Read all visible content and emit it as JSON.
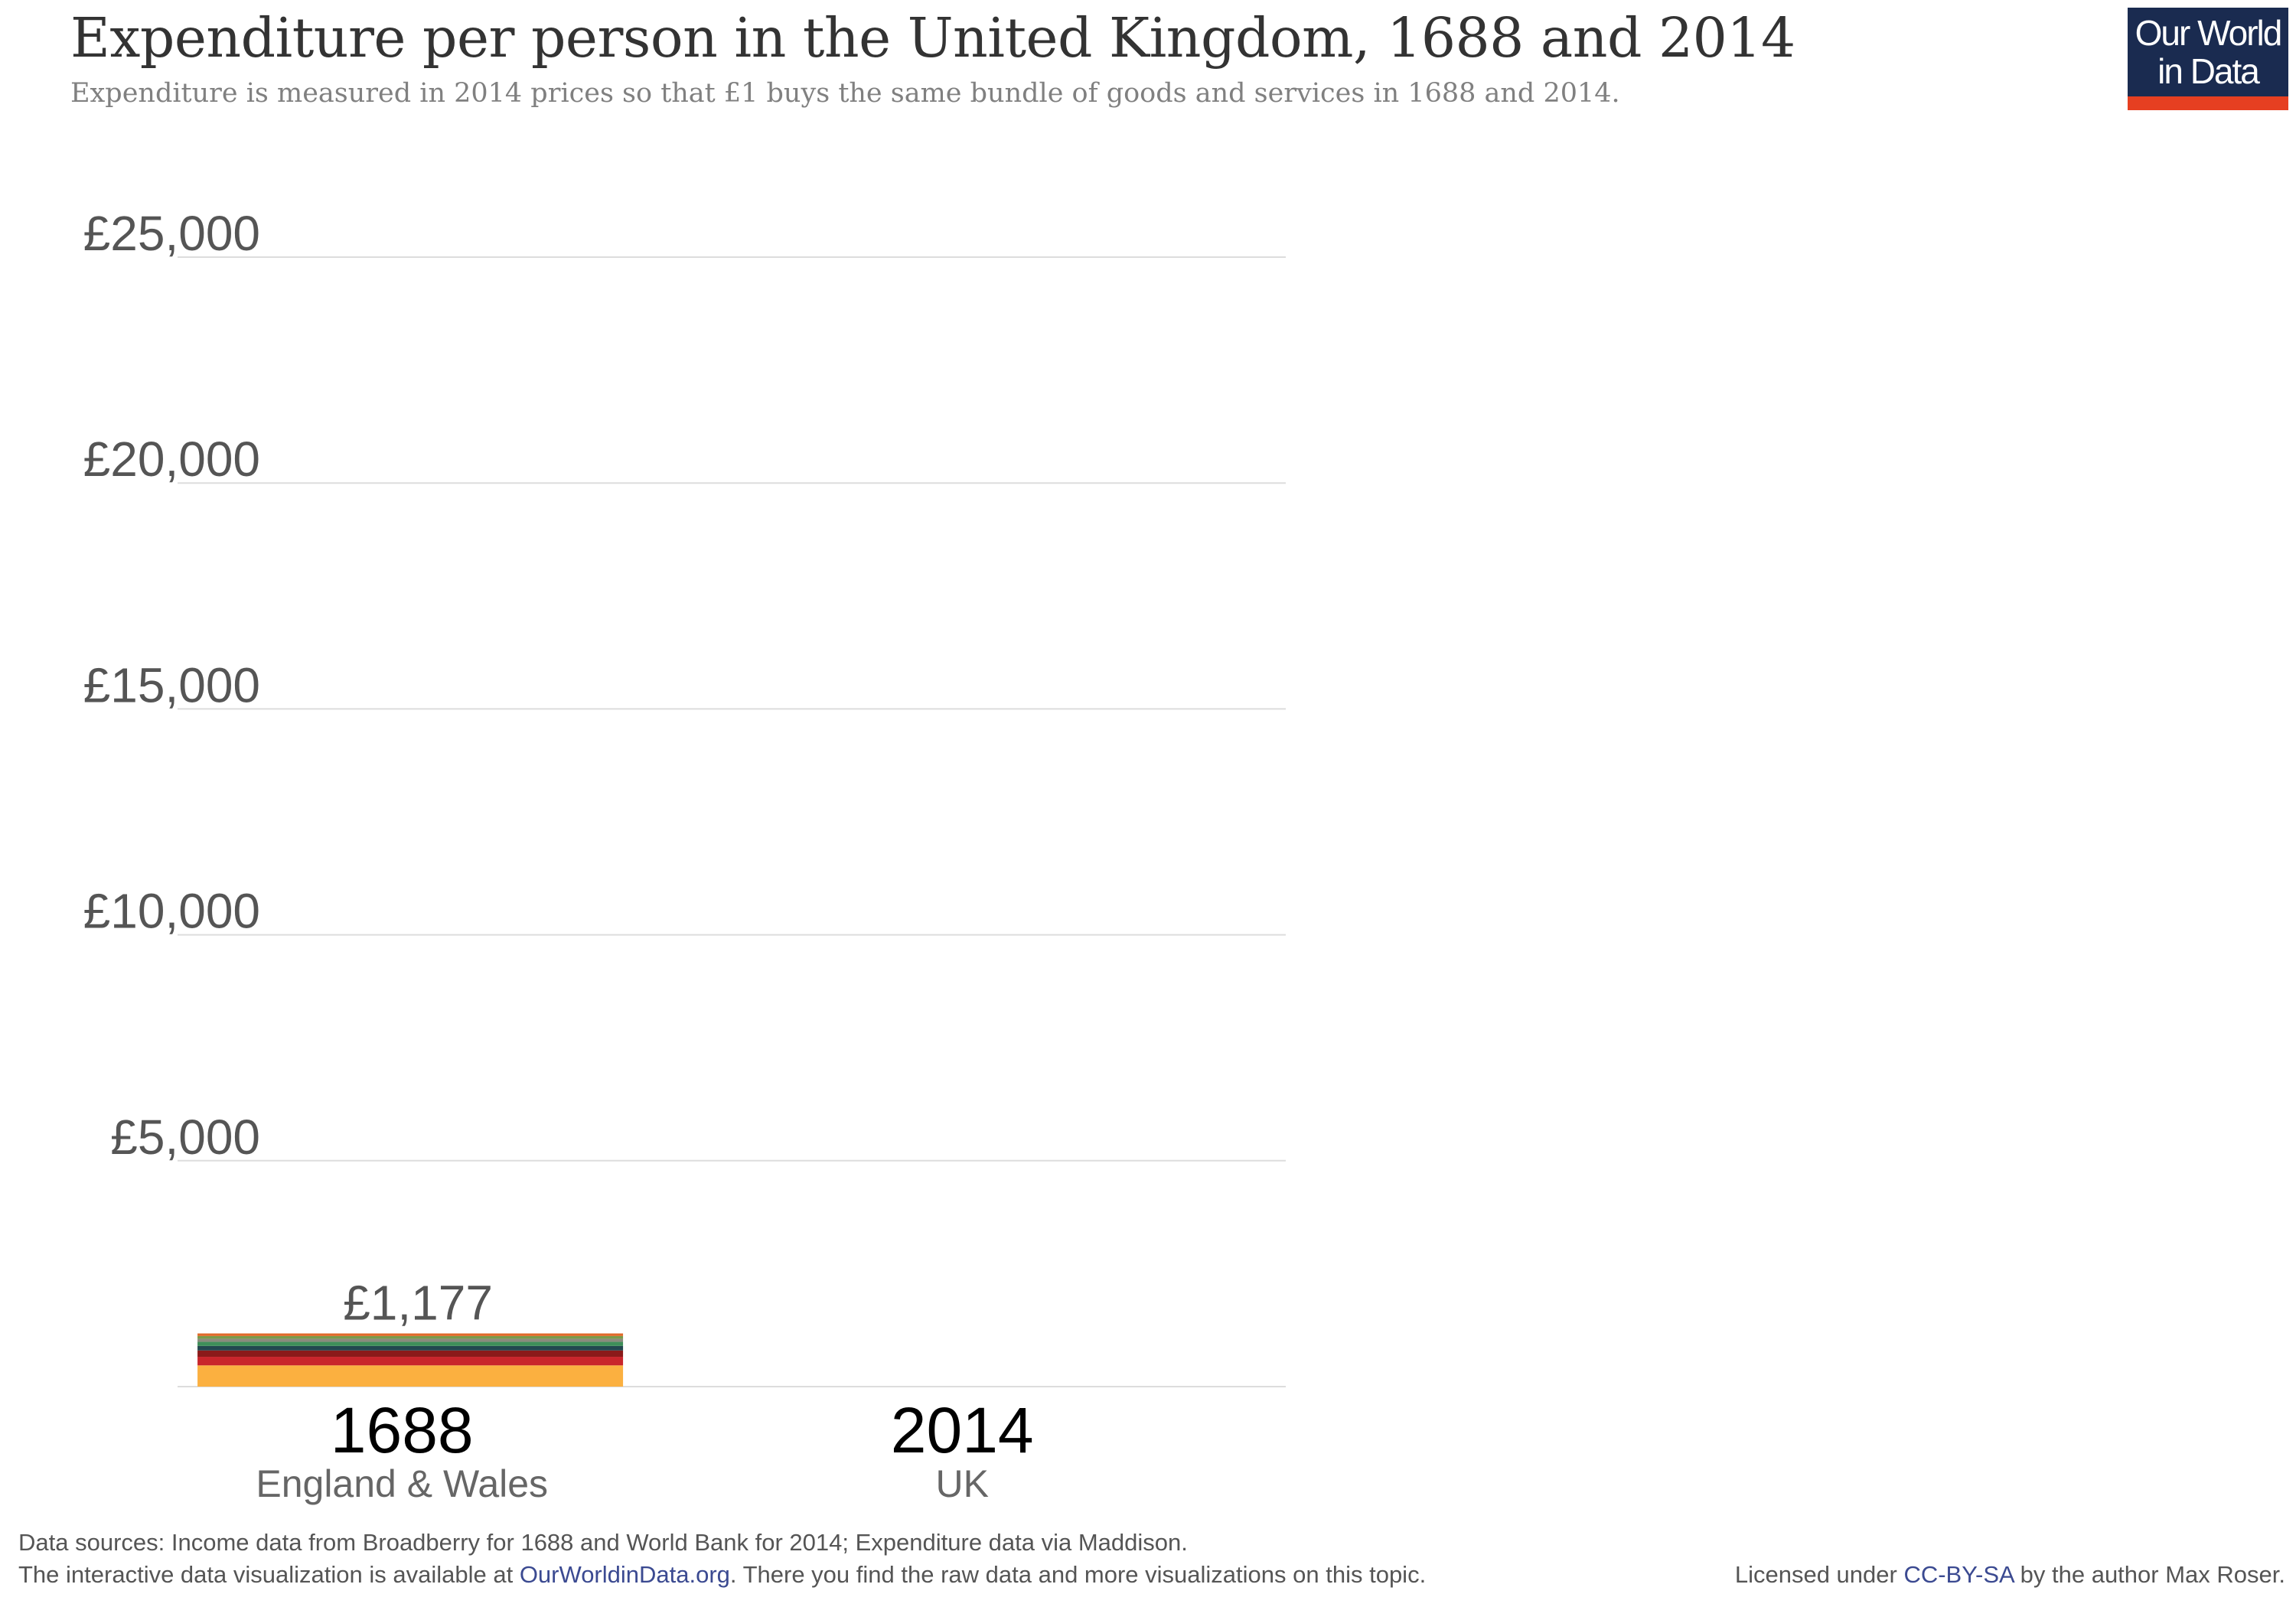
{
  "header": {
    "title": "Expenditure per person in the United Kingdom, 1688 and 2014",
    "subtitle": "Expenditure is measured in 2014 prices so that £1 buys the same bundle of goods and services in 1688 and 2014.",
    "logo_line1": "Our World",
    "logo_line2": "in Data"
  },
  "chart_data": {
    "type": "bar",
    "stacked": true,
    "title": "Expenditure per person in the United Kingdom, 1688 and 2014",
    "xlabel": "",
    "ylabel": "",
    "ylim": [
      0,
      25000
    ],
    "grid": true,
    "yticks": [
      5000,
      10000,
      15000,
      20000,
      25000
    ],
    "ytick_labels": [
      "£5,000",
      "£10,000",
      "£15,000",
      "£20,000",
      "£25,000"
    ],
    "categories": [
      "1688",
      "2014"
    ],
    "category_sublabels": [
      "England & Wales",
      "UK"
    ],
    "totals": [
      1177,
      null
    ],
    "total_labels": [
      "£1,177",
      ""
    ],
    "series": [
      {
        "values": [
          470,
          0
        ],
        "color": "#fbb040"
      },
      {
        "values": [
          190,
          0
        ],
        "color": "#c9252b"
      },
      {
        "values": [
          140,
          0
        ],
        "color": "#8b1a1a"
      },
      {
        "values": [
          100,
          0
        ],
        "color": "#23474f"
      },
      {
        "values": [
          90,
          0
        ],
        "color": "#3f8f5a"
      },
      {
        "values": [
          70,
          0
        ],
        "color": "#8b8b7d"
      },
      {
        "values": [
          60,
          0
        ],
        "color": "#7a9a4a"
      },
      {
        "values": [
          57,
          0
        ],
        "color": "#e06a2a"
      }
    ]
  },
  "footer": {
    "sources": "Data sources: Income data from Broadberry for 1688 and World Bank for 2014; Expenditure data via Maddison.",
    "interactive_prefix": "The interactive data visualization is available at ",
    "interactive_link": "OurWorldinData.org",
    "interactive_suffix": ". There you find the raw data and more visualizations on this topic.",
    "license_prefix": "Licensed under ",
    "license_link": "CC-BY-SA",
    "license_suffix": " by the author Max Roser."
  }
}
